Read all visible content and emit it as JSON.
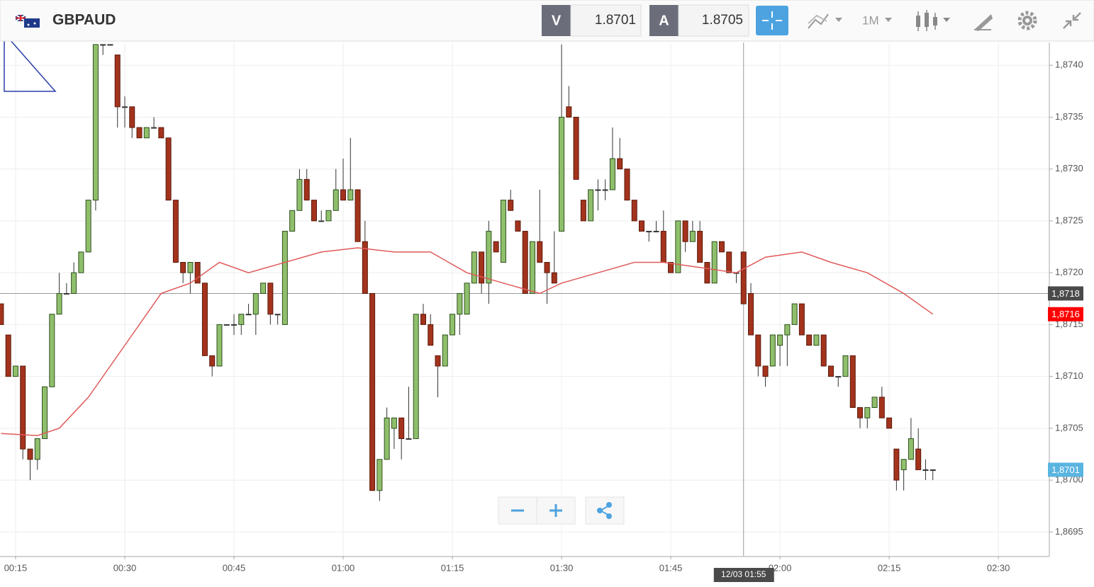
{
  "header": {
    "symbol": "GBPAUD",
    "bid_label": "V",
    "bid": 1.8701,
    "ask_label": "A",
    "ask": 1.8705,
    "timeframe": "1M"
  },
  "chart_data": {
    "type": "candlestick",
    "x": [
      13,
      14,
      15,
      16,
      17,
      18,
      19,
      20,
      21,
      22,
      23,
      24,
      25,
      26,
      27,
      28,
      29,
      30,
      31,
      32,
      33,
      34,
      35,
      36,
      37,
      38,
      39,
      40,
      41,
      42,
      43,
      44,
      45,
      46,
      47,
      48,
      49,
      50,
      51,
      52,
      53,
      54,
      55,
      56,
      57,
      58,
      59,
      60,
      61,
      62,
      63,
      64,
      65,
      66,
      67,
      68,
      69,
      70,
      71,
      72,
      73,
      74,
      75,
      76,
      77,
      78,
      79,
      80,
      81,
      82,
      83,
      84,
      85,
      86,
      87,
      88,
      89,
      90,
      91,
      92,
      93,
      94,
      95,
      96,
      97,
      98,
      99,
      100,
      101,
      102,
      103,
      104,
      105,
      106,
      107,
      108,
      109,
      110,
      111,
      112,
      113,
      114,
      115,
      116,
      117,
      118,
      119,
      120,
      121,
      122,
      123,
      124,
      125,
      126,
      127,
      128,
      129,
      130,
      131,
      132,
      133,
      134,
      135,
      136,
      137,
      138,
      139,
      140,
      141
    ],
    "open": [
      1.8717,
      1.8714,
      1.871,
      1.8711,
      1.8703,
      1.8702,
      1.8704,
      1.8709,
      1.8716,
      1.8718,
      1.8718,
      1.872,
      1.8722,
      1.8727,
      1.8742,
      1.8742,
      1.8741,
      1.8736,
      1.8736,
      1.8734,
      1.8733,
      1.8734,
      1.8734,
      1.8733,
      1.8727,
      1.8721,
      1.872,
      1.8721,
      1.8719,
      1.8712,
      1.8711,
      1.8715,
      1.8715,
      1.8715,
      1.8716,
      1.8716,
      1.8718,
      1.8719,
      1.8716,
      1.8715,
      1.8724,
      1.8726,
      1.8729,
      1.8727,
      1.8725,
      1.8725,
      1.8726,
      1.8728,
      1.8727,
      1.8728,
      1.8723,
      1.8718,
      1.8699,
      1.8702,
      1.8705,
      1.8706,
      1.8704,
      1.8704,
      1.8716,
      1.8715,
      1.8712,
      1.8711,
      1.8714,
      1.8716,
      1.8716,
      1.8719,
      1.8722,
      1.8719,
      1.8723,
      1.8721,
      1.8727,
      1.8725,
      1.8724,
      1.8718,
      1.8723,
      1.8721,
      1.872,
      1.8724,
      1.8736,
      1.8735,
      1.8727,
      1.8725,
      1.8728,
      1.8728,
      1.8728,
      1.8731,
      1.873,
      1.8727,
      1.8725,
      1.8724,
      1.8724,
      1.8724,
      1.8721,
      1.872,
      1.8725,
      1.8723,
      1.8724,
      1.8721,
      1.8719,
      1.8723,
      1.8722,
      1.872,
      1.8722,
      1.8718,
      1.8714,
      1.8711,
      1.8711,
      1.8713,
      1.8714,
      1.8715,
      1.8717,
      1.8714,
      1.8713,
      1.8714,
      1.8711,
      1.871,
      1.871,
      1.8712,
      1.8707,
      1.8706,
      1.8707,
      1.8708,
      1.8706,
      1.8703,
      1.8701,
      1.8702,
      1.8703,
      1.8701,
      1.8701
    ],
    "high": [
      1.8717,
      1.8714,
      1.8711,
      1.8711,
      1.8703,
      1.8704,
      1.8709,
      1.8716,
      1.872,
      1.8719,
      1.8721,
      1.8722,
      1.8727,
      1.8742,
      1.8742,
      1.8742,
      1.8741,
      1.8737,
      1.8736,
      1.8734,
      1.8734,
      1.8735,
      1.8734,
      1.8733,
      1.8727,
      1.8721,
      1.8721,
      1.8721,
      1.8719,
      1.8712,
      1.8715,
      1.8715,
      1.8716,
      1.8716,
      1.8717,
      1.8718,
      1.8719,
      1.8719,
      1.8716,
      1.8724,
      1.8726,
      1.873,
      1.873,
      1.8727,
      1.8726,
      1.8726,
      1.873,
      1.8731,
      1.8733,
      1.8728,
      1.8725,
      1.8718,
      1.8702,
      1.8707,
      1.8706,
      1.8706,
      1.8709,
      1.8716,
      1.8717,
      1.8716,
      1.8712,
      1.8714,
      1.8716,
      1.8718,
      1.8719,
      1.8722,
      1.8722,
      1.8725,
      1.8723,
      1.8727,
      1.8728,
      1.8725,
      1.8724,
      1.8723,
      1.8728,
      1.8721,
      1.8724,
      1.8742,
      1.8738,
      1.8735,
      1.8727,
      1.8728,
      1.8729,
      1.8729,
      1.8734,
      1.8733,
      1.873,
      1.8727,
      1.8725,
      1.8724,
      1.8725,
      1.8726,
      1.8721,
      1.8725,
      1.8725,
      1.8725,
      1.8725,
      1.8721,
      1.8723,
      1.8723,
      1.8722,
      1.872,
      1.8722,
      1.8719,
      1.8714,
      1.8711,
      1.8714,
      1.8714,
      1.8715,
      1.8717,
      1.8717,
      1.8714,
      1.8714,
      1.8714,
      1.8711,
      1.871,
      1.8712,
      1.8712,
      1.8707,
      1.8707,
      1.8708,
      1.8709,
      1.8706,
      1.8703,
      1.8702,
      1.8706,
      1.8705,
      1.8702,
      1.8701
    ],
    "low": [
      1.8715,
      1.871,
      1.871,
      1.8702,
      1.87,
      1.8701,
      1.8704,
      1.8709,
      1.8716,
      1.8718,
      1.8718,
      1.872,
      1.8722,
      1.8726,
      1.8741,
      1.8742,
      1.8734,
      1.8734,
      1.8733,
      1.8733,
      1.8733,
      1.8734,
      1.8733,
      1.8727,
      1.8721,
      1.8719,
      1.8718,
      1.8719,
      1.8712,
      1.871,
      1.8711,
      1.8715,
      1.8714,
      1.8714,
      1.8716,
      1.8714,
      1.8718,
      1.8715,
      1.8715,
      1.8715,
      1.8724,
      1.8726,
      1.8727,
      1.8725,
      1.8725,
      1.8725,
      1.8726,
      1.8727,
      1.8727,
      1.8723,
      1.8718,
      1.8699,
      1.8698,
      1.8702,
      1.8703,
      1.8702,
      1.8704,
      1.8704,
      1.8715,
      1.8713,
      1.8708,
      1.8711,
      1.8714,
      1.8714,
      1.8716,
      1.8719,
      1.8718,
      1.8717,
      1.8722,
      1.8721,
      1.8726,
      1.8724,
      1.8718,
      1.8718,
      1.8721,
      1.8717,
      1.8719,
      1.8724,
      1.8735,
      1.8729,
      1.8725,
      1.8725,
      1.8726,
      1.8727,
      1.8728,
      1.873,
      1.8727,
      1.8725,
      1.8724,
      1.8723,
      1.8724,
      1.8721,
      1.872,
      1.872,
      1.8722,
      1.8723,
      1.8721,
      1.8719,
      1.8719,
      1.8722,
      1.872,
      1.8719,
      1.8717,
      1.8714,
      1.871,
      1.8709,
      1.8711,
      1.8711,
      1.8711,
      1.8715,
      1.8714,
      1.8713,
      1.8713,
      1.8711,
      1.871,
      1.8709,
      1.871,
      1.8707,
      1.8705,
      1.8705,
      1.8707,
      1.8706,
      1.8705,
      1.8699,
      1.8699,
      1.8702,
      1.8701,
      1.87,
      1.87
    ],
    "close": [
      1.8715,
      1.871,
      1.8711,
      1.8703,
      1.8702,
      1.8704,
      1.8709,
      1.8716,
      1.8718,
      1.8718,
      1.872,
      1.8722,
      1.8727,
      1.8742,
      1.8742,
      1.8742,
      1.8736,
      1.8736,
      1.8734,
      1.8733,
      1.8734,
      1.8734,
      1.8733,
      1.8727,
      1.8721,
      1.872,
      1.8721,
      1.8719,
      1.8712,
      1.8711,
      1.8715,
      1.8715,
      1.8715,
      1.8716,
      1.8716,
      1.8718,
      1.8719,
      1.8716,
      1.8716,
      1.8724,
      1.8726,
      1.8729,
      1.8727,
      1.8725,
      1.8725,
      1.8726,
      1.8728,
      1.8727,
      1.8728,
      1.8723,
      1.8718,
      1.8699,
      1.8702,
      1.8706,
      1.8706,
      1.8704,
      1.8704,
      1.8716,
      1.8715,
      1.8713,
      1.8711,
      1.8714,
      1.8716,
      1.8718,
      1.8719,
      1.8722,
      1.8719,
      1.8724,
      1.8722,
      1.8727,
      1.8726,
      1.8724,
      1.8718,
      1.8723,
      1.8721,
      1.872,
      1.8719,
      1.8735,
      1.8735,
      1.8729,
      1.8725,
      1.8728,
      1.8728,
      1.8728,
      1.8731,
      1.873,
      1.8727,
      1.8725,
      1.8724,
      1.8724,
      1.8724,
      1.8721,
      1.872,
      1.8725,
      1.8723,
      1.8724,
      1.8721,
      1.8719,
      1.8723,
      1.8722,
      1.872,
      1.872,
      1.8717,
      1.8714,
      1.8711,
      1.871,
      1.8714,
      1.8714,
      1.8715,
      1.8717,
      1.8714,
      1.8713,
      1.8714,
      1.8711,
      1.871,
      1.871,
      1.8712,
      1.8707,
      1.8706,
      1.8707,
      1.8708,
      1.8706,
      1.8705,
      1.87,
      1.8702,
      1.8704,
      1.8701,
      1.8701,
      1.8701
    ],
    "up_color": "#8fbf6b",
    "down_color": "#a3331d",
    "ma": {
      "color": "#e05a5a",
      "x": [
        13,
        18,
        21,
        25,
        28,
        31,
        35,
        39,
        43,
        47,
        52,
        57,
        62,
        67,
        72,
        77,
        82,
        87,
        90,
        95,
        100,
        104,
        109,
        114,
        118,
        123,
        127,
        132,
        137,
        141
      ],
      "values": [
        1.87045,
        1.87043,
        1.8705,
        1.8708,
        1.8711,
        1.8714,
        1.8718,
        1.8719,
        1.8721,
        1.872,
        1.8721,
        1.8722,
        1.87224,
        1.8722,
        1.8722,
        1.872,
        1.8719,
        1.8718,
        1.8719,
        1.872,
        1.8721,
        1.8721,
        1.87205,
        1.872,
        1.87215,
        1.8722,
        1.8721,
        1.872,
        1.8718,
        1.8716
      ]
    },
    "xlim": [
      12.86,
      157.0
    ],
    "ylim": [
      1.86927,
      1.87422
    ],
    "xticks": [
      {
        "value": 15,
        "label": "00:15"
      },
      {
        "value": 30,
        "label": "00:30"
      },
      {
        "value": 45,
        "label": "00:45"
      },
      {
        "value": 60,
        "label": "01:00"
      },
      {
        "value": 75,
        "label": "01:15"
      },
      {
        "value": 90,
        "label": "01:30"
      },
      {
        "value": 105,
        "label": "01:45"
      },
      {
        "value": 120,
        "label": "02:00"
      },
      {
        "value": 135,
        "label": "02:15"
      },
      {
        "value": 150,
        "label": "02:30"
      }
    ],
    "yticks": [
      {
        "value": 1.8695,
        "label": "1,8695"
      },
      {
        "value": 1.87,
        "label": "1,8700"
      },
      {
        "value": 1.8705,
        "label": "1,8705"
      },
      {
        "value": 1.871,
        "label": "1,8710"
      },
      {
        "value": 1.8715,
        "label": "1,8715"
      },
      {
        "value": 1.872,
        "label": "1,8720"
      },
      {
        "value": 1.8725,
        "label": "1,8725"
      },
      {
        "value": 1.873,
        "label": "1,8730"
      },
      {
        "value": 1.8735,
        "label": "1,8735"
      },
      {
        "value": 1.874,
        "label": "1,8740"
      }
    ],
    "grid": true,
    "price_labels": [
      {
        "value": 1.8718,
        "label": "1,8718",
        "color": "#4a4a4a"
      },
      {
        "value": 1.8716,
        "label": "1,8716",
        "color": "#ff0000"
      },
      {
        "value": 1.8701,
        "label": "1,8701",
        "color": "#5ab4e0"
      }
    ],
    "crosshair": {
      "x": 115,
      "label": "12/03 01:55"
    }
  }
}
